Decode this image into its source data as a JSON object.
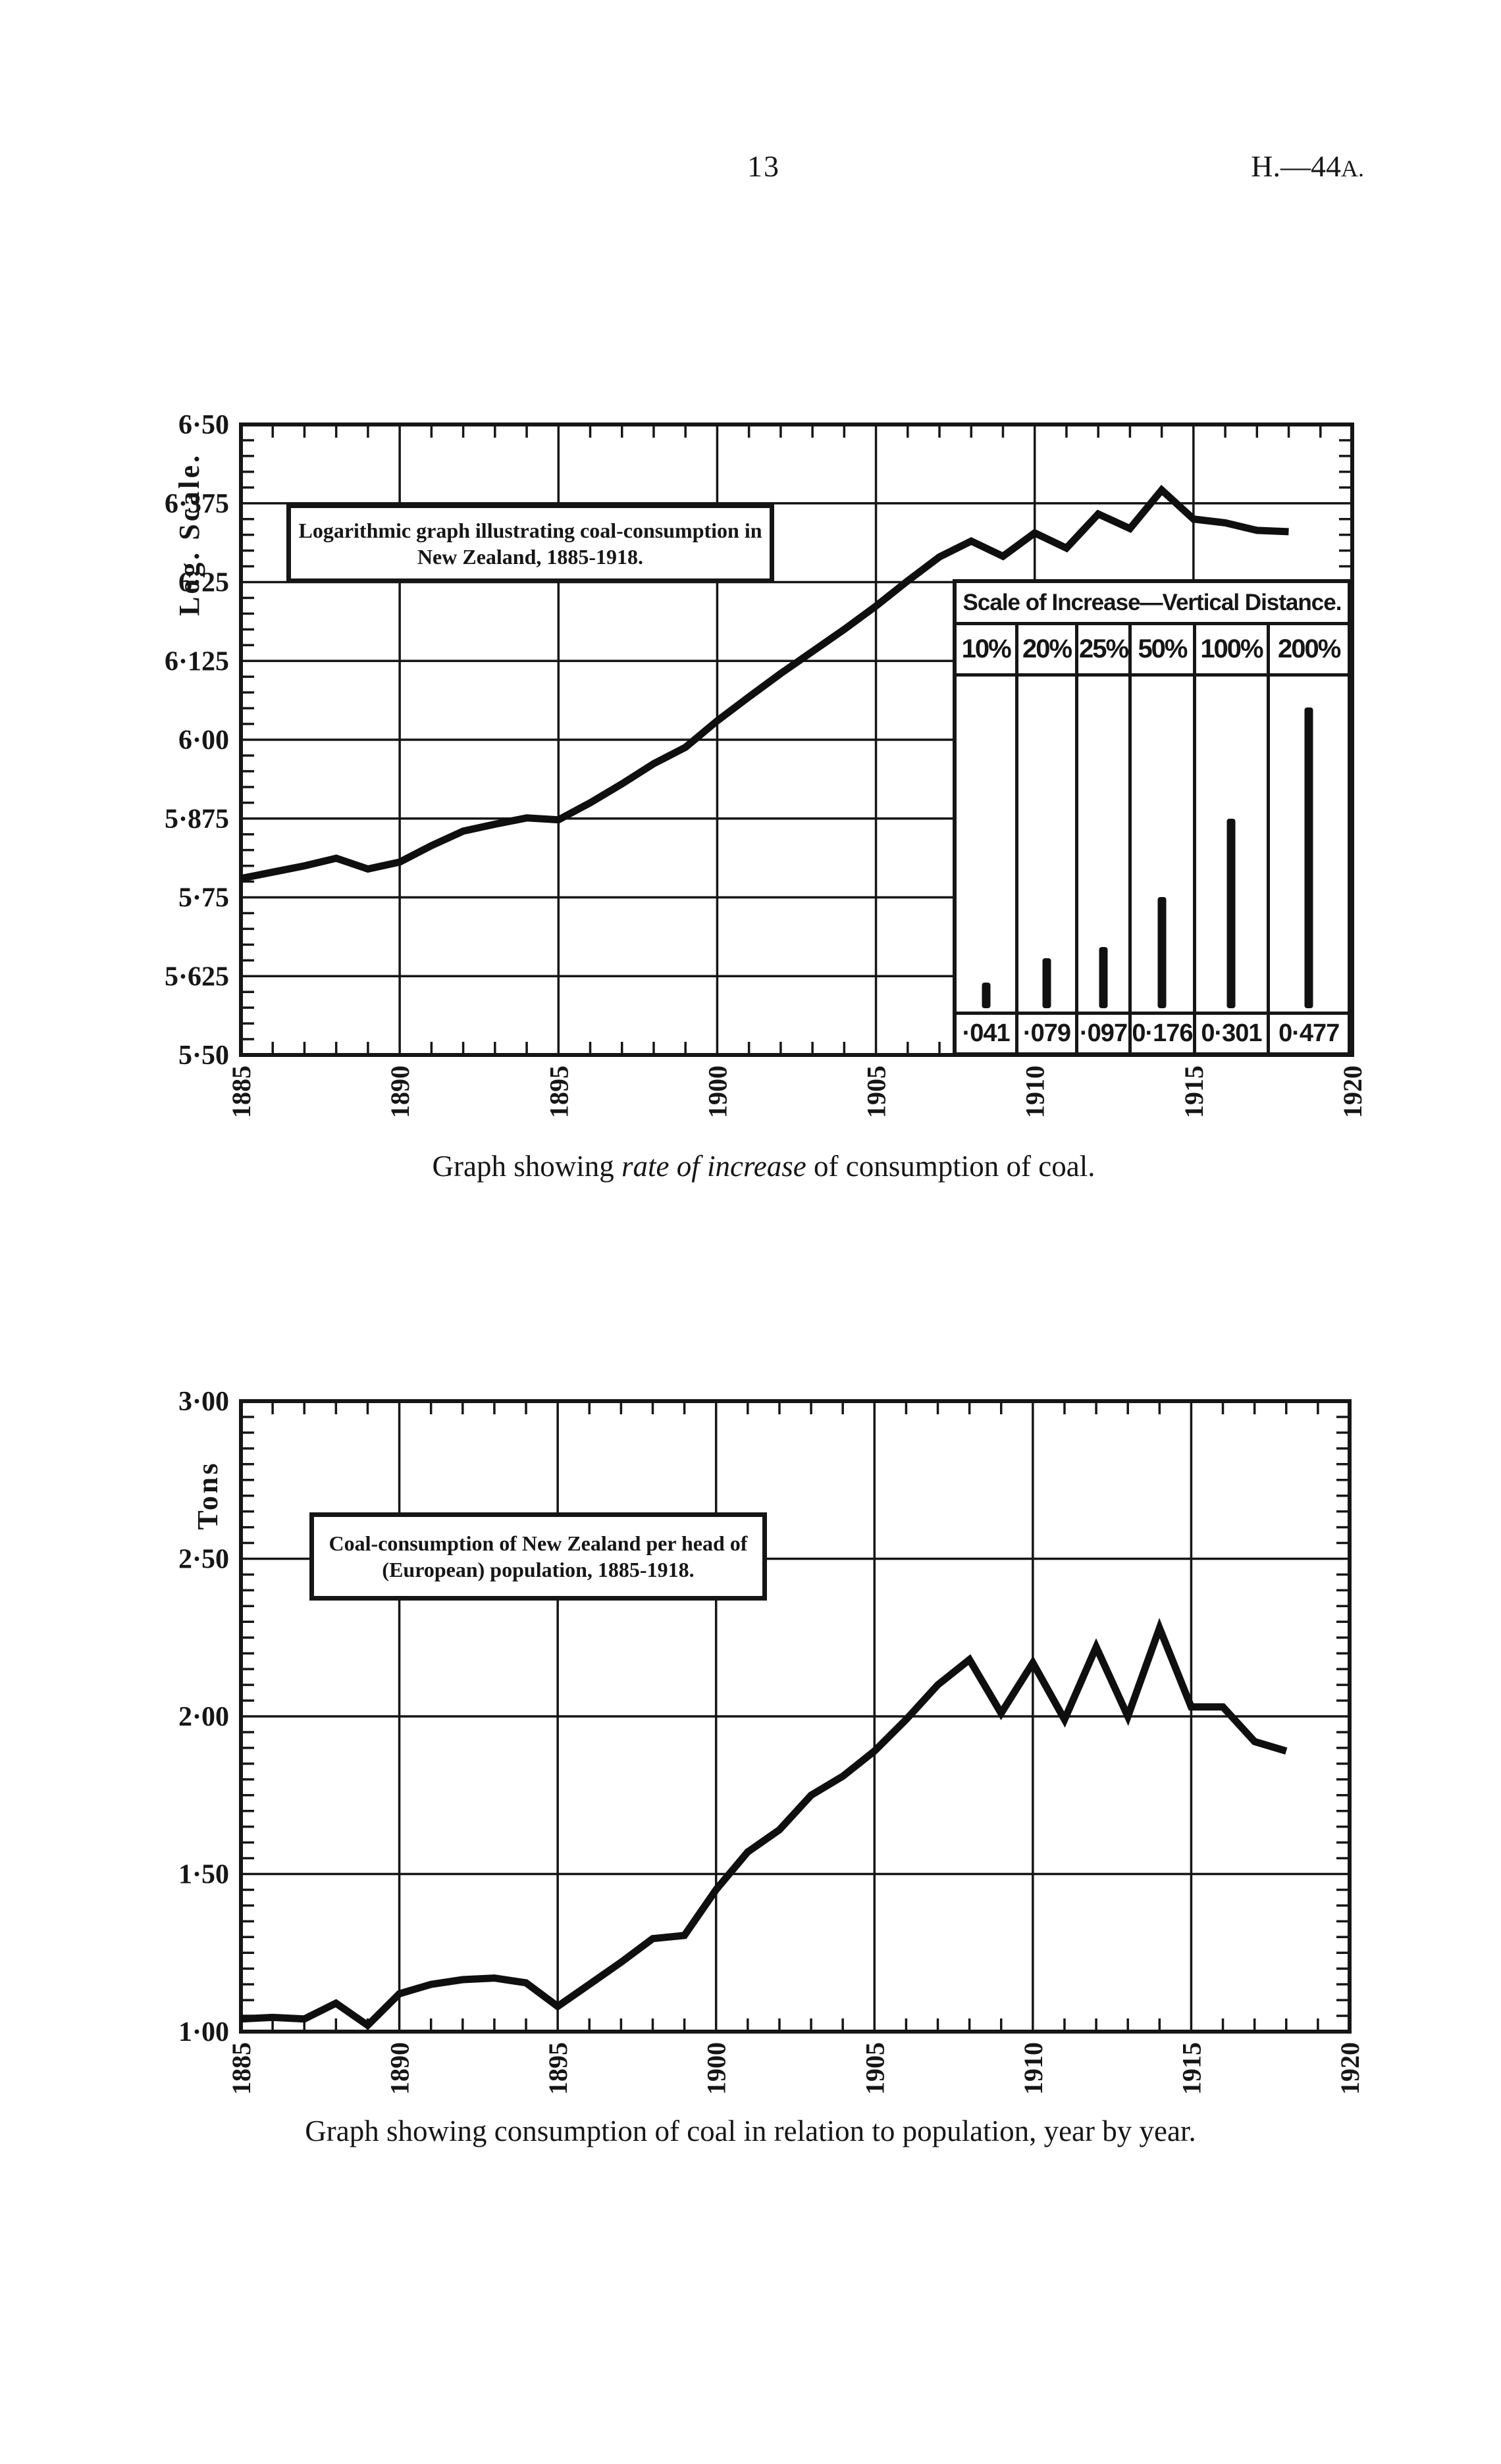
{
  "page": {
    "page_number": "13",
    "doc_ref_main": "H.—44",
    "doc_ref_small": "A.",
    "caption_top_pre": "Graph showing ",
    "caption_top_italic": "rate of increase",
    "caption_top_post": " of consumption of coal.",
    "caption_bottom": "Graph showing consumption of coal in relation to population, year by year."
  },
  "chart_data": [
    {
      "type": "line",
      "title": "Logarithmic graph illustrating coal-consumption in New Zealand, 1885-1918.",
      "title_line1": "Logarithmic graph illustrating coal-consumption in",
      "title_line2": "New Zealand, 1885-1918.",
      "ylabel": "Log. Scale.",
      "xlabel": "",
      "xlim": [
        1885,
        1920
      ],
      "ylim": [
        5.5,
        6.5
      ],
      "grid": true,
      "y_minor_step": 0.025,
      "yticks": [
        "6·50",
        "6·375",
        "6·25",
        "6·125",
        "6·00",
        "5·875",
        "5·75",
        "5·625",
        "5·50"
      ],
      "ytick_values": [
        6.5,
        6.375,
        6.25,
        6.125,
        6.0,
        5.875,
        5.75,
        5.625,
        5.5
      ],
      "xticks": [
        "1885",
        "1890",
        "1895",
        "1900",
        "1905",
        "1910",
        "1915",
        "1920"
      ],
      "x": [
        1885,
        1886,
        1887,
        1888,
        1889,
        1890,
        1891,
        1892,
        1893,
        1894,
        1895,
        1896,
        1897,
        1898,
        1899,
        1900,
        1901,
        1902,
        1903,
        1904,
        1905,
        1906,
        1907,
        1908,
        1909,
        1910,
        1911,
        1912,
        1913,
        1914,
        1915,
        1916,
        1917,
        1918
      ],
      "values": [
        5.78,
        5.79,
        5.8,
        5.812,
        5.795,
        5.806,
        5.832,
        5.855,
        5.866,
        5.876,
        5.873,
        5.9,
        5.93,
        5.962,
        5.988,
        6.03,
        6.068,
        6.105,
        6.14,
        6.175,
        6.212,
        6.252,
        6.29,
        6.315,
        6.291,
        6.328,
        6.304,
        6.358,
        6.335,
        6.396,
        6.35,
        6.344,
        6.332,
        6.33
      ],
      "inset": {
        "header": "Scale of Increase—Vertical Distance.",
        "columns": [
          {
            "percent": "10%",
            "value_label": "·041",
            "value": 0.041
          },
          {
            "percent": "20%",
            "value_label": "·079",
            "value": 0.079
          },
          {
            "percent": "25%",
            "value_label": "·097",
            "value": 0.097
          },
          {
            "percent": "50%",
            "value_label": "0·176",
            "value": 0.176
          },
          {
            "percent": "100%",
            "value_label": "0·301",
            "value": 0.301
          },
          {
            "percent": "200%",
            "value_label": "0·477",
            "value": 0.477
          }
        ]
      }
    },
    {
      "type": "line",
      "title": "Coal-consumption of New Zealand per head of (European) population, 1885-1918.",
      "title_line1": "Coal-consumption of New Zealand per head of",
      "title_line2": "(European) population, 1885-1918.",
      "ylabel": "Tons",
      "xlabel": "",
      "xlim": [
        1885,
        1920
      ],
      "ylim": [
        1.0,
        3.0
      ],
      "grid": true,
      "y_minor_step": 0.05,
      "yticks": [
        "3·00",
        "2·50",
        "2·00",
        "1·50",
        "1·00"
      ],
      "ytick_values": [
        3.0,
        2.5,
        2.0,
        1.5,
        1.0
      ],
      "xticks": [
        "1885",
        "1890",
        "1895",
        "1900",
        "1905",
        "1910",
        "1915",
        "1920"
      ],
      "x": [
        1885,
        1886,
        1887,
        1888,
        1889,
        1890,
        1891,
        1892,
        1893,
        1894,
        1895,
        1896,
        1897,
        1898,
        1899,
        1900,
        1901,
        1902,
        1903,
        1904,
        1905,
        1906,
        1907,
        1908,
        1909,
        1910,
        1911,
        1912,
        1913,
        1914,
        1915,
        1916,
        1917,
        1918
      ],
      "values": [
        1.04,
        1.045,
        1.04,
        1.09,
        1.02,
        1.12,
        1.15,
        1.165,
        1.17,
        1.155,
        1.08,
        1.15,
        1.22,
        1.295,
        1.305,
        1.45,
        1.57,
        1.64,
        1.75,
        1.81,
        1.89,
        1.99,
        2.1,
        2.18,
        2.01,
        2.17,
        1.99,
        2.22,
        2.0,
        2.28,
        2.03,
        2.03,
        1.92,
        1.89
      ]
    }
  ]
}
